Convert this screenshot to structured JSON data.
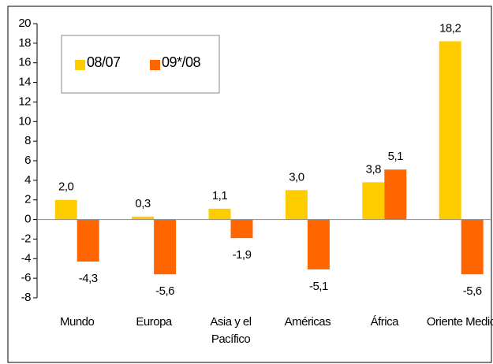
{
  "chart_data": {
    "type": "bar",
    "categories": [
      "Mundo",
      "Europa",
      "Asia y el Pacífico",
      "Américas",
      "África",
      "Oriente Medio"
    ],
    "series": [
      {
        "name": "08/07",
        "color": "#FFCC00",
        "values": [
          2.0,
          0.3,
          1.1,
          3.0,
          3.8,
          18.2
        ],
        "value_labels": [
          "2,0",
          "0,3",
          "1,1",
          "3,0",
          "3,8",
          "18,2"
        ]
      },
      {
        "name": "09*/08",
        "color": "#FF6600",
        "values": [
          -4.3,
          -5.6,
          -1.9,
          -5.1,
          5.1,
          -5.6
        ],
        "value_labels": [
          "-4,3",
          "-5,6",
          "-1,9",
          "-5,1",
          "5,1",
          "-5,6"
        ]
      }
    ],
    "ylim": [
      -8,
      20
    ],
    "yticks": [
      -8,
      -6,
      -4,
      -2,
      0,
      2,
      4,
      6,
      8,
      10,
      12,
      14,
      16,
      18,
      20
    ],
    "legend": "upper left"
  }
}
